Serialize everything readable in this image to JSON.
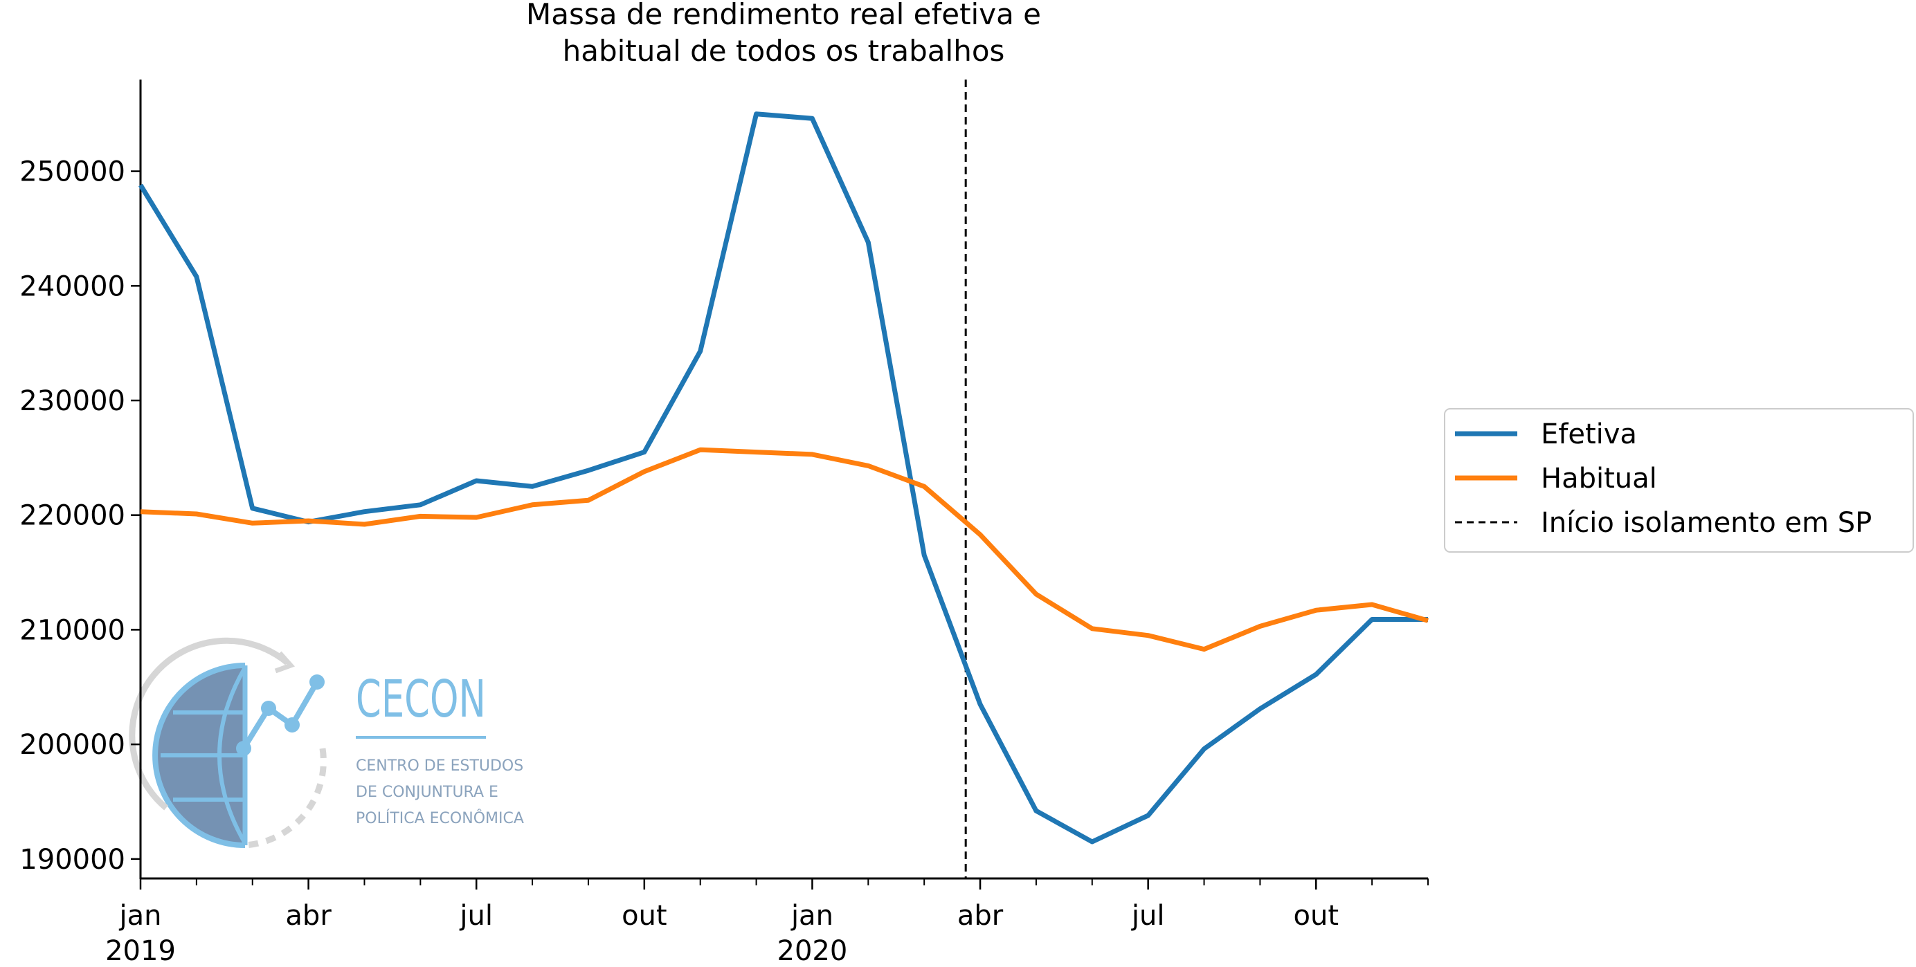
{
  "chart_data": {
    "type": "line",
    "title_lines": [
      "Massa de rendimento real efetiva e",
      "habitual de todos os trabalhos"
    ],
    "xlabel": "",
    "ylabel": "",
    "x": [
      "2019-01",
      "2019-02",
      "2019-03",
      "2019-04",
      "2019-05",
      "2019-06",
      "2019-07",
      "2019-08",
      "2019-09",
      "2019-10",
      "2019-11",
      "2019-12",
      "2020-01",
      "2020-02",
      "2020-03",
      "2020-04",
      "2020-05",
      "2020-06",
      "2020-07",
      "2020-08",
      "2020-09",
      "2020-10",
      "2020-11",
      "2020-12"
    ],
    "series": [
      {
        "name": "Efetiva",
        "color": "#1f77b4",
        "values": [
          248800,
          240800,
          220600,
          219400,
          220300,
          220900,
          223000,
          222500,
          223900,
          225500,
          234300,
          255000,
          254600,
          243800,
          216500,
          203500,
          194200,
          191500,
          193800,
          199600,
          203100,
          206100,
          210900,
          210900
        ]
      },
      {
        "name": "Habitual",
        "color": "#ff7f0e",
        "values": [
          220300,
          220100,
          219300,
          219500,
          219200,
          219900,
          219800,
          220900,
          221300,
          223800,
          225700,
          225500,
          225300,
          224300,
          222500,
          218300,
          213100,
          210100,
          209500,
          208300,
          210300,
          211700,
          212200,
          210800
        ]
      }
    ],
    "vline": {
      "x": "2020-03-24",
      "label": "Início isolamento em SP",
      "color": "#000000",
      "style": "dashed"
    },
    "xticks": [
      {
        "x": "2019-01",
        "label": "jan",
        "sublabel": "2019"
      },
      {
        "x": "2019-04",
        "label": "abr"
      },
      {
        "x": "2019-07",
        "label": "jul"
      },
      {
        "x": "2019-10",
        "label": "out"
      },
      {
        "x": "2020-01",
        "label": "jan",
        "sublabel": "2020"
      },
      {
        "x": "2020-04",
        "label": "abr"
      },
      {
        "x": "2020-07",
        "label": "jul"
      },
      {
        "x": "2020-10",
        "label": "out"
      }
    ],
    "minor_xticks": [
      "2019-02",
      "2019-03",
      "2019-05",
      "2019-06",
      "2019-08",
      "2019-09",
      "2019-11",
      "2019-12",
      "2020-02",
      "2020-03",
      "2020-05",
      "2020-06",
      "2020-08",
      "2020-09",
      "2020-11",
      "2020-12"
    ],
    "yticks": [
      190000,
      200000,
      210000,
      220000,
      230000,
      240000,
      250000
    ],
    "ylim": [
      188300,
      258000
    ],
    "grid": false,
    "legend_position": "right"
  },
  "logo": {
    "name": "CECON",
    "subtitle_lines": [
      "CENTRO DE ESTUDOS",
      "DE CONJUNTURA E",
      "POLÍTICA ECONÔMICA"
    ],
    "color": "#7fbfe6",
    "dark_color": "#5d7fa6"
  }
}
